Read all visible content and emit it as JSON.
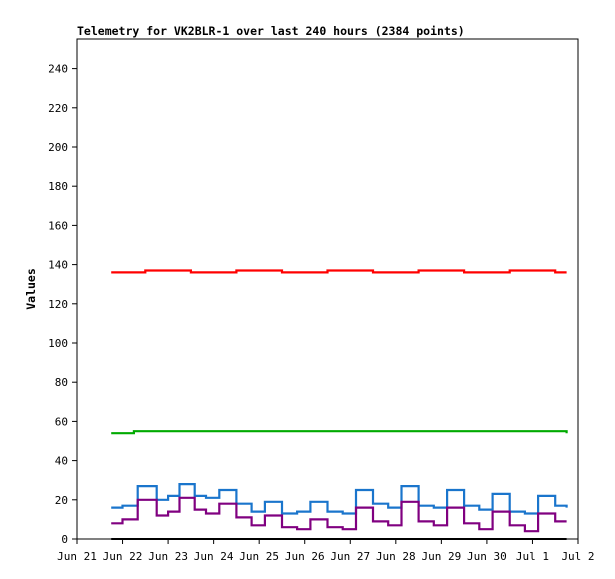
{
  "chart_data": {
    "type": "line",
    "title": "Telemetry for VK2BLR-1 over last 240 hours (2384 points)",
    "ylabel": "Values",
    "xlabel": "",
    "ylim": [
      0,
      250
    ],
    "xlim": [
      "2025-06-21",
      "2025-07-02"
    ],
    "grid": false,
    "yticks": [
      0,
      20,
      40,
      60,
      80,
      100,
      120,
      140,
      160,
      180,
      200,
      220,
      240
    ],
    "xticks": [
      "Jun 21",
      "Jun 22",
      "Jun 23",
      "Jun 24",
      "Jun 25",
      "Jun 26",
      "Jun 27",
      "Jun 28",
      "Jun 29",
      "Jun 30",
      "Jul 1",
      "Jul 2"
    ],
    "series": [
      {
        "color": "#ff0000",
        "x": [
          "2025-06-21T18:00",
          "2025-06-22T12:00",
          "2025-06-23T12:00",
          "2025-06-24T12:00",
          "2025-06-25T12:00",
          "2025-06-26T12:00",
          "2025-06-27T12:00",
          "2025-06-28T12:00",
          "2025-06-29T12:00",
          "2025-06-30T12:00",
          "2025-07-01T12:00",
          "2025-07-01T18:00"
        ],
        "y": [
          136,
          137,
          136,
          137,
          136,
          137,
          136,
          137,
          136,
          137,
          136,
          136
        ]
      },
      {
        "color": "#00aa00",
        "x": [
          "2025-06-21T18:00",
          "2025-06-22T06:00",
          "2025-06-23T06:00",
          "2025-06-28T06:00",
          "2025-06-28T16:00",
          "2025-07-01T18:00"
        ],
        "y": [
          54,
          55,
          55,
          55,
          55,
          54
        ]
      },
      {
        "color": "#1a75cc",
        "x": [
          "2025-06-21T18:00",
          "2025-06-22T00:00",
          "2025-06-22T08:00",
          "2025-06-22T18:00",
          "2025-06-23T00:00",
          "2025-06-23T06:00",
          "2025-06-23T14:00",
          "2025-06-23T20:00",
          "2025-06-24T03:00",
          "2025-06-24T12:00",
          "2025-06-24T20:00",
          "2025-06-25T03:00",
          "2025-06-25T12:00",
          "2025-06-25T20:00",
          "2025-06-26T03:00",
          "2025-06-26T12:00",
          "2025-06-26T20:00",
          "2025-06-27T03:00",
          "2025-06-27T12:00",
          "2025-06-27T20:00",
          "2025-06-28T03:00",
          "2025-06-28T12:00",
          "2025-06-28T20:00",
          "2025-06-29T03:00",
          "2025-06-29T12:00",
          "2025-06-29T20:00",
          "2025-06-30T03:00",
          "2025-06-30T12:00",
          "2025-06-30T20:00",
          "2025-07-01T03:00",
          "2025-07-01T12:00",
          "2025-07-01T18:00"
        ],
        "y": [
          16,
          17,
          27,
          20,
          22,
          28,
          22,
          21,
          25,
          18,
          14,
          19,
          13,
          14,
          19,
          14,
          13,
          25,
          18,
          16,
          27,
          17,
          16,
          25,
          17,
          15,
          23,
          14,
          13,
          22,
          17,
          16
        ]
      },
      {
        "color": "#800080",
        "x": [
          "2025-06-21T18:00",
          "2025-06-22T00:00",
          "2025-06-22T08:00",
          "2025-06-22T18:00",
          "2025-06-23T00:00",
          "2025-06-23T06:00",
          "2025-06-23T14:00",
          "2025-06-23T20:00",
          "2025-06-24T03:00",
          "2025-06-24T12:00",
          "2025-06-24T20:00",
          "2025-06-25T03:00",
          "2025-06-25T12:00",
          "2025-06-25T20:00",
          "2025-06-26T03:00",
          "2025-06-26T12:00",
          "2025-06-26T20:00",
          "2025-06-27T03:00",
          "2025-06-27T12:00",
          "2025-06-27T20:00",
          "2025-06-28T03:00",
          "2025-06-28T12:00",
          "2025-06-28T20:00",
          "2025-06-29T03:00",
          "2025-06-29T12:00",
          "2025-06-29T20:00",
          "2025-06-30T03:00",
          "2025-06-30T12:00",
          "2025-06-30T20:00",
          "2025-07-01T03:00",
          "2025-07-01T12:00",
          "2025-07-01T18:00"
        ],
        "y": [
          8,
          10,
          20,
          12,
          14,
          21,
          15,
          13,
          18,
          11,
          7,
          12,
          6,
          5,
          10,
          6,
          5,
          16,
          9,
          7,
          19,
          9,
          7,
          16,
          8,
          5,
          14,
          7,
          4,
          13,
          9,
          9
        ]
      },
      {
        "color": "#000000",
        "x": [
          "2025-06-21T18:00",
          "2025-07-01T18:00"
        ],
        "y": [
          0,
          0
        ]
      }
    ]
  }
}
